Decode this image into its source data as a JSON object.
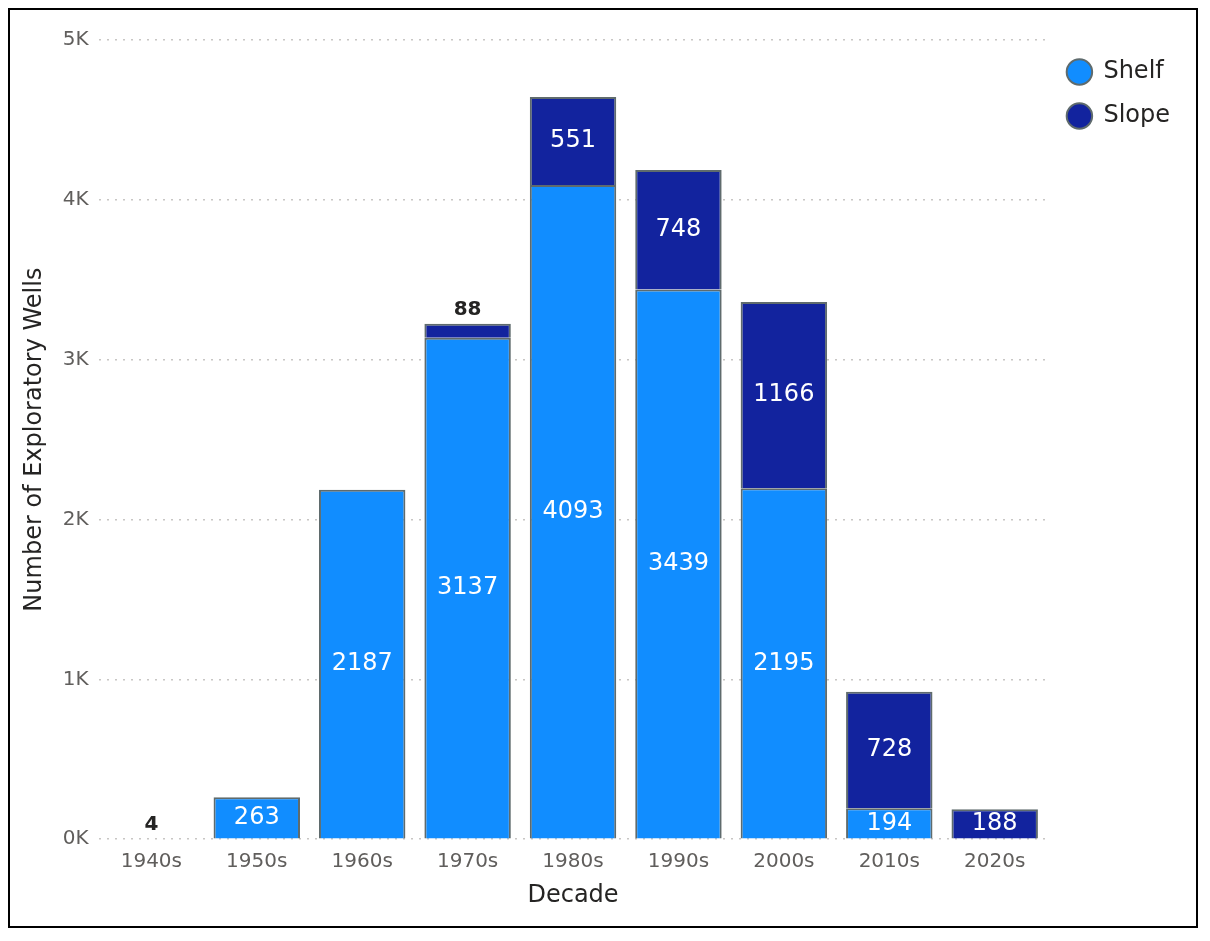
{
  "chart_data": {
    "type": "bar",
    "xlabel": "Decade",
    "ylabel": "Number of Exploratory Wells",
    "categories": [
      "1940s",
      "1950s",
      "1960s",
      "1970s",
      "1980s",
      "1990s",
      "2000s",
      "2010s",
      "2020s"
    ],
    "stacked": true,
    "series": [
      {
        "name": "Shelf",
        "color": "#118dff",
        "values": [
          4,
          263,
          2187,
          3137,
          4093,
          3439,
          2195,
          194,
          null
        ]
      },
      {
        "name": "Slope",
        "color": "#12239e",
        "values": [
          null,
          null,
          null,
          88,
          551,
          748,
          1166,
          728,
          188
        ]
      }
    ],
    "ylim": [
      0,
      5000
    ],
    "yticks": [
      {
        "value": 0,
        "label": "0K"
      },
      {
        "value": 1000,
        "label": "1K"
      },
      {
        "value": 2000,
        "label": "2K"
      },
      {
        "value": 3000,
        "label": "3K"
      },
      {
        "value": 4000,
        "label": "4K"
      },
      {
        "value": 5000,
        "label": "5K"
      }
    ],
    "grid": "y",
    "legend": "top right",
    "marker": "circle",
    "data_labels": true
  }
}
